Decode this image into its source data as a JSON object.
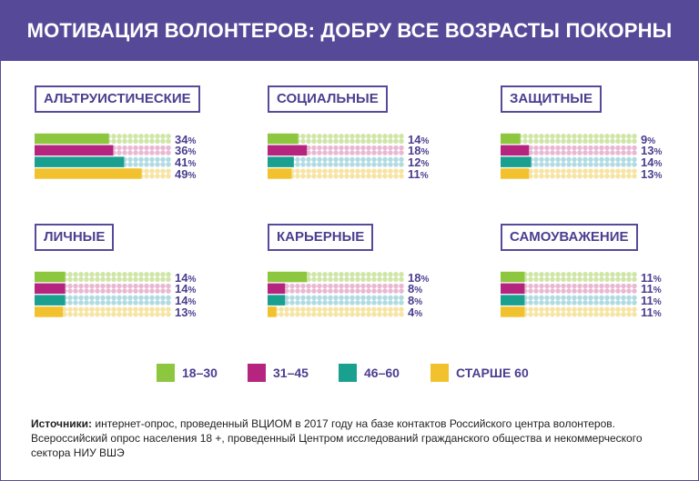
{
  "header": {
    "title": "МОТИВАЦИЯ ВОЛОНТЕРОВ: ДОБРУ ВСЕ ВОЗРАСТЫ ПОКОРНЫ"
  },
  "colors": {
    "header_bg": "#564a98",
    "text": "#4a3f8f",
    "series": [
      "#8dc63f",
      "#b5247e",
      "#1aa08f",
      "#f2c12e"
    ],
    "dots": [
      "#cfe6a7",
      "#e9b9d4",
      "#b0dbe2",
      "#f6e4a3"
    ]
  },
  "legend": [
    {
      "label": "18–30"
    },
    {
      "label": "31–45"
    },
    {
      "label": "46–60"
    },
    {
      "label": "СТАРШЕ 60"
    }
  ],
  "chart_data": {
    "type": "bar",
    "orientation": "horizontal",
    "unit": "%",
    "series_names": [
      "18–30",
      "31–45",
      "46–60",
      "СТАРШЕ 60"
    ],
    "panels": [
      {
        "category": "АЛЬТРУИСТИЧЕСКИЕ",
        "values": [
          34,
          36,
          41,
          49
        ]
      },
      {
        "category": "СОЦИАЛЬНЫЕ",
        "values": [
          14,
          18,
          12,
          11
        ]
      },
      {
        "category": "ЗАЩИТНЫЕ",
        "values": [
          9,
          13,
          14,
          13
        ]
      },
      {
        "category": "ЛИЧНЫЕ",
        "values": [
          14,
          14,
          14,
          13
        ]
      },
      {
        "category": "КАРЬЕРНЫЕ",
        "values": [
          18,
          8,
          8,
          4
        ]
      },
      {
        "category": "САМОУВАЖЕНИЕ",
        "values": [
          11,
          11,
          11,
          11
        ]
      }
    ]
  },
  "source": {
    "label": "Источники:",
    "text": " интернет-опрос, проведенный ВЦИОМ в 2017 году на базе контактов Российского центра волонтеров. Всероссийский опрос населения 18 +, проведенный Центром исследований гражданского общества и некоммерческого сектора НИУ ВШЭ"
  }
}
